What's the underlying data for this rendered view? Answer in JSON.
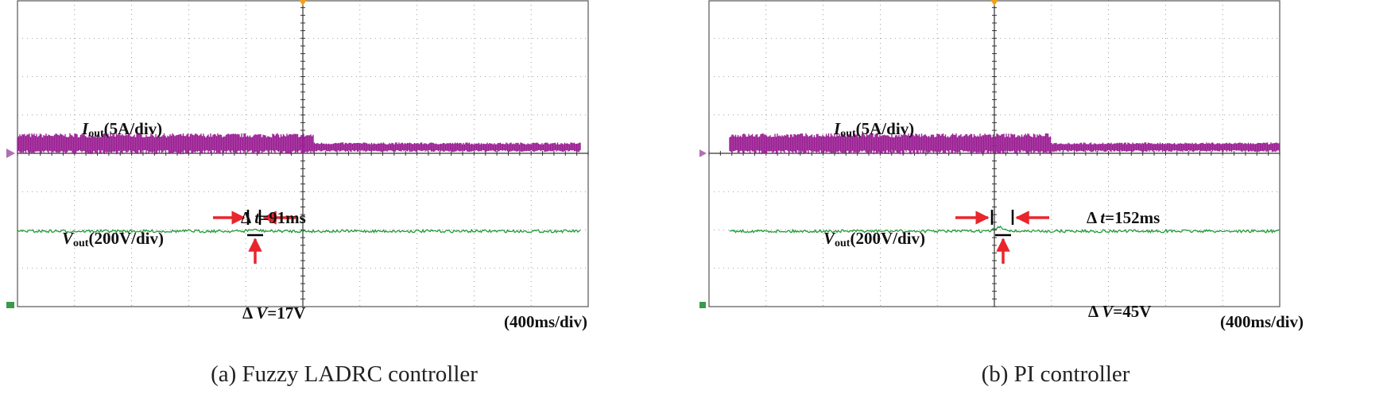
{
  "panels": [
    {
      "id": "a",
      "caption": "(a) Fuzzy LADRC controller",
      "current_label": {
        "symbol": "I",
        "sub": "out",
        "scale": "(5A/div)"
      },
      "voltage_label": {
        "symbol": "V",
        "sub": "out",
        "scale": "(200V/div)"
      },
      "delta_t": {
        "prefix": "Δ ",
        "var": "t",
        "value": "=91ms"
      },
      "delta_v": {
        "prefix": "Δ ",
        "var": "V",
        "value": "=17V"
      },
      "timebase": "(400ms/div)"
    },
    {
      "id": "b",
      "caption": "(b) PI controller",
      "current_label": {
        "symbol": "I",
        "sub": "out",
        "scale": "(5A/div)"
      },
      "voltage_label": {
        "symbol": "V",
        "sub": "out",
        "scale": "(200V/div)"
      },
      "delta_t": {
        "prefix": "Δ ",
        "var": "t",
        "value": "=152ms"
      },
      "delta_v": {
        "prefix": "Δ ",
        "var": "V",
        "value": "=45V"
      },
      "timebase": "(400ms/div)"
    }
  ],
  "colors": {
    "current": "#9b1f94",
    "voltage": "#1f9a36",
    "annotation": "#e8262c",
    "grid": "#808080"
  },
  "chart_data": [
    {
      "type": "line",
      "title": "",
      "time_per_div_ms": 400,
      "series": [
        {
          "name": "Iout",
          "scale_per_div": "5A/div",
          "step_time_div": 5.2,
          "amplitude_before_div": 0.55,
          "amplitude_after_div": 0.25
        },
        {
          "name": "Vout",
          "scale_per_div": "200V/div",
          "step_time_div": 5.2,
          "dip_V": 17,
          "recovery_ms": 91
        }
      ]
    },
    {
      "type": "line",
      "title": "",
      "time_per_div_ms": 400,
      "series": [
        {
          "name": "Iout",
          "scale_per_div": "5A/div",
          "step_time_div": 6.0,
          "amplitude_before_div": 0.55,
          "amplitude_after_div": 0.25
        },
        {
          "name": "Vout",
          "scale_per_div": "200V/div",
          "step_time_div": 6.0,
          "dip_V": 45,
          "recovery_ms": 152
        }
      ]
    }
  ]
}
